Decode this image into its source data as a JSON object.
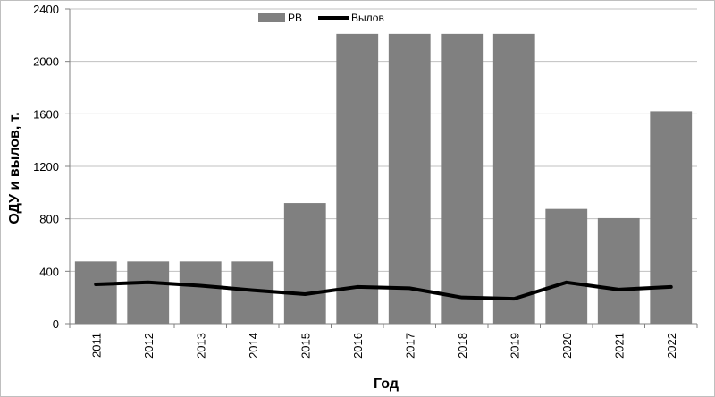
{
  "chart_data": {
    "type": "bar",
    "categories": [
      "2011",
      "2012",
      "2013",
      "2014",
      "2015",
      "2016",
      "2017",
      "2018",
      "2019",
      "2020",
      "2021",
      "2022"
    ],
    "series": [
      {
        "name": "РВ",
        "kind": "bar",
        "color": "#808080",
        "values": [
          475,
          475,
          475,
          475,
          920,
          2210,
          2210,
          2210,
          2210,
          875,
          805,
          1620
        ]
      },
      {
        "name": "Вылов",
        "kind": "line",
        "color": "#000000",
        "values": [
          300,
          315,
          290,
          255,
          225,
          280,
          270,
          200,
          190,
          315,
          260,
          280
        ]
      }
    ],
    "title": "",
    "xlabel": "Год",
    "ylabel": "ОДУ и вылов, т.",
    "ylim": [
      0,
      2400
    ],
    "yticks": [
      0,
      400,
      800,
      1200,
      1600,
      2000,
      2400
    ],
    "grid": true,
    "legend_position": "top-center"
  }
}
